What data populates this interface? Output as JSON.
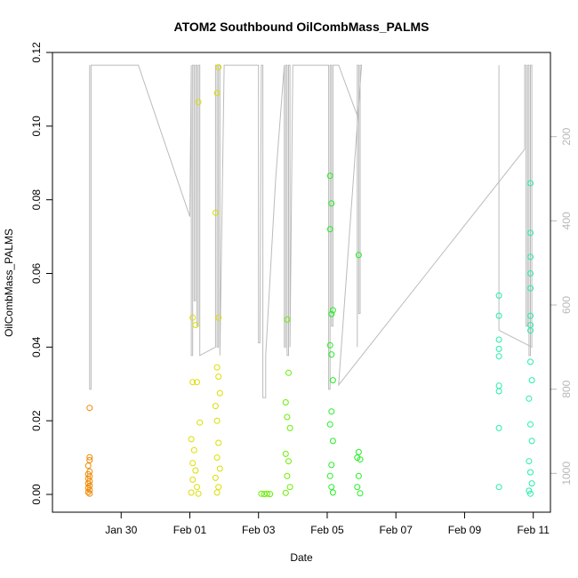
{
  "chart_data": {
    "type": "scatter",
    "title": "ATOM2 Southbound OilCombMass_PALMS",
    "xlabel": "Date",
    "ylabel": "OilCombMass_PALMS",
    "xlim": [
      "2017-01-28T00:00",
      "2017-02-11T12:00"
    ],
    "ylim": [
      0,
      0.12
    ],
    "x_ticks": [
      {
        "label": "Jan 30",
        "value": "2017-01-30"
      },
      {
        "label": "Feb 01",
        "value": "2017-02-01"
      },
      {
        "label": "Feb 03",
        "value": "2017-02-03"
      },
      {
        "label": "Feb 05",
        "value": "2017-02-05"
      },
      {
        "label": "Feb 07",
        "value": "2017-02-07"
      },
      {
        "label": "Feb 09",
        "value": "2017-02-09"
      },
      {
        "label": "Feb 11",
        "value": "2017-02-11"
      }
    ],
    "y_ticks": [
      "0.00",
      "0.02",
      "0.04",
      "0.06",
      "0.08",
      "0.10",
      "0.12"
    ],
    "y2_ticks": [
      "200",
      "400",
      "600",
      "800",
      "1000"
    ],
    "y2lim": [
      0,
      1050
    ],
    "y2_reversed": true,
    "grid": false,
    "series": [
      {
        "color": "#ee8800",
        "points": [
          [
            "2017-01-29T02:00",
            0.0235
          ],
          [
            "2017-01-29T02:00",
            0.0101
          ],
          [
            "2017-01-29T02:00",
            0.0093
          ],
          [
            "2017-01-29T01:00",
            0.0078
          ],
          [
            "2017-01-29T02:00",
            0.0062
          ],
          [
            "2017-01-29T01:00",
            0.0055
          ],
          [
            "2017-01-29T02:00",
            0.0049
          ],
          [
            "2017-01-29T01:00",
            0.0043
          ],
          [
            "2017-01-29T02:00",
            0.0036
          ],
          [
            "2017-01-29T01:00",
            0.003
          ],
          [
            "2017-01-29T02:00",
            0.0024
          ],
          [
            "2017-01-29T01:00",
            0.0018
          ],
          [
            "2017-01-29T02:00",
            0.0012
          ],
          [
            "2017-01-29T01:00",
            0.0006
          ],
          [
            "2017-01-29T02:00",
            0.0002
          ]
        ]
      },
      {
        "color": "#dddd00",
        "points": [
          [
            "2017-02-01T02:00",
            0.048
          ],
          [
            "2017-02-01T04:00",
            0.046
          ],
          [
            "2017-02-01T06:00",
            0.1065
          ],
          [
            "2017-02-01T02:00",
            0.0305
          ],
          [
            "2017-02-01T05:00",
            0.0305
          ],
          [
            "2017-02-01T07:00",
            0.0195
          ],
          [
            "2017-02-01T01:00",
            0.015
          ],
          [
            "2017-02-01T03:00",
            0.012
          ],
          [
            "2017-02-01T02:00",
            0.0085
          ],
          [
            "2017-02-01T04:00",
            0.0065
          ],
          [
            "2017-02-01T02:00",
            0.004
          ],
          [
            "2017-02-01T05:00",
            0.002
          ],
          [
            "2017-02-01T01:00",
            0.0005
          ],
          [
            "2017-02-01T06:00",
            0.0002
          ],
          [
            "2017-02-01T20:00",
            0.116
          ],
          [
            "2017-02-01T19:00",
            0.109
          ],
          [
            "2017-02-01T18:00",
            0.0765
          ],
          [
            "2017-02-01T20:00",
            0.048
          ],
          [
            "2017-02-01T19:00",
            0.0345
          ],
          [
            "2017-02-01T20:00",
            0.032
          ],
          [
            "2017-02-01T21:00",
            0.0275
          ],
          [
            "2017-02-01T18:00",
            0.024
          ],
          [
            "2017-02-01T19:00",
            0.02
          ],
          [
            "2017-02-01T20:00",
            0.014
          ],
          [
            "2017-02-01T19:00",
            0.01
          ],
          [
            "2017-02-01T21:00",
            0.007
          ],
          [
            "2017-02-01T18:00",
            0.0045
          ],
          [
            "2017-02-01T20:00",
            0.002
          ],
          [
            "2017-02-01T19:00",
            0.0005
          ]
        ]
      },
      {
        "color": "#66ee00",
        "points": [
          [
            "2017-02-03T02:00",
            0.0002
          ],
          [
            "2017-02-03T04:00",
            0.0001
          ],
          [
            "2017-02-03T06:00",
            0.0002
          ],
          [
            "2017-02-03T08:00",
            0.0001
          ],
          [
            "2017-02-03T20:00",
            0.0475
          ],
          [
            "2017-02-03T21:00",
            0.033
          ],
          [
            "2017-02-03T19:00",
            0.025
          ],
          [
            "2017-02-03T20:00",
            0.021
          ],
          [
            "2017-02-03T22:00",
            0.018
          ],
          [
            "2017-02-03T19:00",
            0.011
          ],
          [
            "2017-02-03T21:00",
            0.009
          ],
          [
            "2017-02-03T20:00",
            0.005
          ],
          [
            "2017-02-03T22:00",
            0.002
          ],
          [
            "2017-02-03T19:00",
            0.0004
          ]
        ]
      },
      {
        "color": "#22ee22",
        "points": [
          [
            "2017-02-05T02:00",
            0.0865
          ],
          [
            "2017-02-05T03:00",
            0.079
          ],
          [
            "2017-02-05T02:00",
            0.072
          ],
          [
            "2017-02-05T04:00",
            0.05
          ],
          [
            "2017-02-05T03:00",
            0.049
          ],
          [
            "2017-02-05T02:00",
            0.0405
          ],
          [
            "2017-02-05T03:00",
            0.038
          ],
          [
            "2017-02-05T04:00",
            0.031
          ],
          [
            "2017-02-05T03:00",
            0.0225
          ],
          [
            "2017-02-05T02:00",
            0.019
          ],
          [
            "2017-02-05T04:00",
            0.0145
          ],
          [
            "2017-02-05T03:00",
            0.008
          ],
          [
            "2017-02-05T02:00",
            0.005
          ],
          [
            "2017-02-05T03:00",
            0.002
          ],
          [
            "2017-02-05T04:00",
            0.0005
          ],
          [
            "2017-02-05T22:00",
            0.065
          ],
          [
            "2017-02-05T22:00",
            0.0115
          ],
          [
            "2017-02-05T21:00",
            0.01
          ],
          [
            "2017-02-05T23:00",
            0.0095
          ],
          [
            "2017-02-05T22:00",
            0.005
          ],
          [
            "2017-02-05T21:00",
            0.002
          ],
          [
            "2017-02-05T23:00",
            0.0003
          ]
        ]
      },
      {
        "color": "#22eeaa",
        "points": [
          [
            "2017-02-10T00:00",
            0.054
          ],
          [
            "2017-02-10T00:00",
            0.0485
          ],
          [
            "2017-02-10T00:00",
            0.042
          ],
          [
            "2017-02-10T00:00",
            0.0395
          ],
          [
            "2017-02-10T00:00",
            0.0375
          ],
          [
            "2017-02-10T00:00",
            0.0295
          ],
          [
            "2017-02-10T00:00",
            0.028
          ],
          [
            "2017-02-10T00:00",
            0.018
          ],
          [
            "2017-02-10T00:00",
            0.002
          ],
          [
            "2017-02-10T22:00",
            0.0845
          ],
          [
            "2017-02-10T22:00",
            0.071
          ],
          [
            "2017-02-10T22:00",
            0.0645
          ],
          [
            "2017-02-10T22:00",
            0.06
          ],
          [
            "2017-02-10T22:00",
            0.056
          ],
          [
            "2017-02-10T22:00",
            0.0485
          ],
          [
            "2017-02-10T22:00",
            0.046
          ],
          [
            "2017-02-10T22:00",
            0.0445
          ],
          [
            "2017-02-10T22:00",
            0.036
          ],
          [
            "2017-02-10T23:00",
            0.031
          ],
          [
            "2017-02-10T21:00",
            0.026
          ],
          [
            "2017-02-10T22:00",
            0.019
          ],
          [
            "2017-02-10T23:00",
            0.0145
          ],
          [
            "2017-02-10T21:00",
            0.009
          ],
          [
            "2017-02-10T22:00",
            0.006
          ],
          [
            "2017-02-10T23:00",
            0.003
          ],
          [
            "2017-02-10T21:00",
            0.001
          ],
          [
            "2017-02-10T22:00",
            0.0002
          ]
        ]
      }
    ],
    "altitude_trace": {
      "color": "#bbbbbb",
      "points": [
        [
          "2017-01-29T02:00",
          30
        ],
        [
          "2017-01-29T02:00",
          30
        ],
        [
          "2017-01-29T02:00",
          800
        ],
        [
          "2017-01-29T03:00",
          800
        ],
        [
          "2017-01-29T03:00",
          30
        ],
        [
          "2017-01-30T12:00",
          30
        ],
        [
          "2017-02-01T00:00",
          390
        ],
        [
          "2017-02-01T01:00",
          30
        ],
        [
          "2017-02-01T01:00",
          720
        ],
        [
          "2017-02-01T02:00",
          720
        ],
        [
          "2017-02-01T02:00",
          30
        ],
        [
          "2017-02-01T03:00",
          30
        ],
        [
          "2017-02-01T03:00",
          590
        ],
        [
          "2017-02-01T04:00",
          590
        ],
        [
          "2017-02-01T04:00",
          30
        ],
        [
          "2017-02-01T05:00",
          30
        ],
        [
          "2017-02-01T05:00",
          650
        ],
        [
          "2017-02-01T06:00",
          650
        ],
        [
          "2017-02-01T06:00",
          30
        ],
        [
          "2017-02-01T07:00",
          30
        ],
        [
          "2017-02-01T07:00",
          720
        ],
        [
          "2017-02-01T18:00",
          700
        ],
        [
          "2017-02-01T18:00",
          30
        ],
        [
          "2017-02-01T19:00",
          30
        ],
        [
          "2017-02-01T19:00",
          700
        ],
        [
          "2017-02-01T20:00",
          700
        ],
        [
          "2017-02-01T20:00",
          30
        ],
        [
          "2017-02-01T21:00",
          30
        ],
        [
          "2017-02-01T21:00",
          720
        ],
        [
          "2017-02-02T00:00",
          30
        ],
        [
          "2017-02-03T00:00",
          30
        ],
        [
          "2017-02-03T00:00",
          690
        ],
        [
          "2017-02-03T01:00",
          690
        ],
        [
          "2017-02-03T02:00",
          30
        ],
        [
          "2017-02-03T03:00",
          30
        ],
        [
          "2017-02-03T03:00",
          820
        ],
        [
          "2017-02-03T05:00",
          820
        ],
        [
          "2017-02-03T05:00",
          720
        ],
        [
          "2017-02-03T12:00",
          300
        ],
        [
          "2017-02-03T18:00",
          30
        ],
        [
          "2017-02-03T18:00",
          700
        ],
        [
          "2017-02-03T19:00",
          700
        ],
        [
          "2017-02-03T19:00",
          30
        ],
        [
          "2017-02-03T20:00",
          30
        ],
        [
          "2017-02-03T20:00",
          720
        ],
        [
          "2017-02-03T21:00",
          720
        ],
        [
          "2017-02-03T21:00",
          30
        ],
        [
          "2017-02-03T22:00",
          30
        ],
        [
          "2017-02-03T22:00",
          700
        ],
        [
          "2017-02-04T00:00",
          30
        ],
        [
          "2017-02-05T00:00",
          30
        ],
        [
          "2017-02-05T01:00",
          30
        ],
        [
          "2017-02-05T01:00",
          800
        ],
        [
          "2017-02-05T02:00",
          800
        ],
        [
          "2017-02-05T02:00",
          30
        ],
        [
          "2017-02-05T03:00",
          30
        ],
        [
          "2017-02-05T03:00",
          650
        ],
        [
          "2017-02-05T04:00",
          650
        ],
        [
          "2017-02-05T04:00",
          30
        ],
        [
          "2017-02-05T08:00",
          30
        ],
        [
          "2017-02-05T21:00",
          150
        ],
        [
          "2017-02-05T21:00",
          700
        ],
        [
          "2017-02-05T21:00",
          30
        ],
        [
          "2017-02-05T22:00",
          30
        ],
        [
          "2017-02-05T22:00",
          620
        ],
        [
          "2017-02-05T23:00",
          620
        ],
        [
          "2017-02-05T23:00",
          30
        ],
        [
          "2017-02-06T00:00",
          30
        ],
        [
          "2017-02-05T08:00",
          790
        ],
        [
          "2017-02-10T18:00",
          230
        ],
        [
          "2017-02-10T18:00",
          30
        ],
        [
          "2017-02-10T19:00",
          30
        ],
        [
          "2017-02-10T19:00",
          650
        ],
        [
          "2017-02-10T20:00",
          650
        ],
        [
          "2017-02-10T20:00",
          30
        ],
        [
          "2017-02-10T21:00",
          30
        ],
        [
          "2017-02-10T21:00",
          720
        ],
        [
          "2017-02-10T22:00",
          720
        ],
        [
          "2017-02-10T22:00",
          30
        ],
        [
          "2017-02-10T23:00",
          30
        ],
        [
          "2017-02-10T23:00",
          700
        ],
        [
          "2017-02-10T00:00",
          660
        ],
        [
          "2017-02-10T00:00",
          30
        ]
      ]
    }
  }
}
